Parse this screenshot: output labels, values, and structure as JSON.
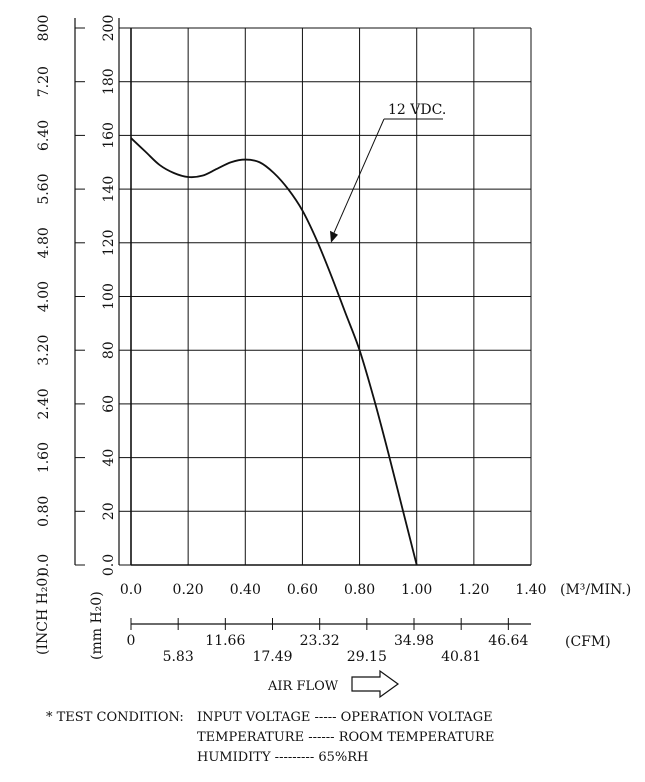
{
  "chart_data": {
    "type": "line",
    "series": [
      {
        "name": "12 VDC.",
        "x": [
          0.0,
          0.05,
          0.1,
          0.15,
          0.2,
          0.25,
          0.3,
          0.35,
          0.4,
          0.45,
          0.5,
          0.55,
          0.6,
          0.65,
          0.7,
          0.75,
          0.8,
          0.85,
          0.9,
          0.95,
          1.0
        ],
        "y": [
          159,
          154,
          149,
          146,
          144.5,
          145,
          147.5,
          150,
          151,
          150,
          146,
          140,
          132,
          121,
          108,
          94,
          80,
          62,
          42,
          21,
          0
        ]
      }
    ],
    "x_ticks": [
      "0.0",
      "0.20",
      "0.40",
      "0.60",
      "0.80",
      "1.00",
      "1.20",
      "1.40"
    ],
    "x_unit": "(M³/MIN.)",
    "cfm_ticks": [
      "0",
      "5.83",
      "11.66",
      "17.49",
      "23.32",
      "29.15",
      "34.98",
      "40.81",
      "46.64"
    ],
    "cfm_unit": "(CFM)",
    "y_mm_ticks": [
      "0.0",
      "20",
      "40",
      "60",
      "80",
      "100",
      "120",
      "140",
      "160",
      "180",
      "200"
    ],
    "y_inch_ticks": [
      "0.0",
      "0.80",
      "1.60",
      "2.40",
      "3.20",
      "4.00",
      "4.80",
      "5.60",
      "6.40",
      "7.20",
      "800"
    ],
    "y_mm_label": "(mm H₂0)",
    "y_inch_label": "(INCH H₂0)",
    "xlim": [
      0,
      1.4
    ],
    "ylim": [
      0,
      200
    ],
    "xlabel": "AIR FLOW",
    "grid": true
  },
  "notes": {
    "line1_prefix": "* TEST CONDITION:",
    "line1": "INPUT VOLTAGE ----- OPERATION VOLTAGE",
    "line2": "TEMPERATURE ------ ROOM TEMPERATURE",
    "line3": "HUMIDITY --------- 65%RH"
  }
}
